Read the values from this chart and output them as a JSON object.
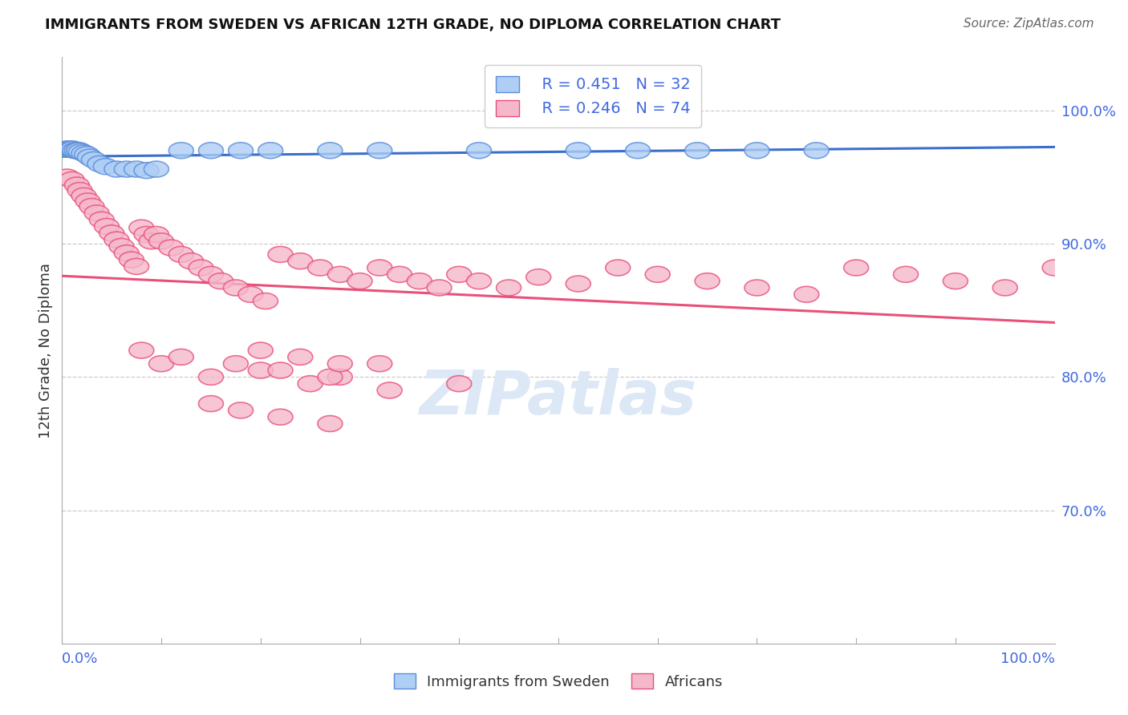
{
  "title": "IMMIGRANTS FROM SWEDEN VS AFRICAN 12TH GRADE, NO DIPLOMA CORRELATION CHART",
  "source": "Source: ZipAtlas.com",
  "ylabel": "12th Grade, No Diploma",
  "legend_r1": "R = 0.451",
  "legend_n1": "N = 32",
  "legend_r2": "R = 0.246",
  "legend_n2": "N = 74",
  "sweden_color": "#aecef5",
  "african_color": "#f5b8cb",
  "sweden_edge_color": "#5b8dd9",
  "african_edge_color": "#e8507a",
  "sweden_line_color": "#3a6fcc",
  "african_line_color": "#e8507a",
  "background_color": "#ffffff",
  "grid_color": "#cccccc",
  "title_color": "#111111",
  "source_color": "#666666",
  "axis_label_color": "#4169e1",
  "watermark_color": "#dce8f5",
  "xlim": [
    0.0,
    1.0
  ],
  "ylim": [
    0.6,
    1.04
  ],
  "right_ytick_labels": [
    "100.0%",
    "90.0%",
    "80.0%",
    "70.0%"
  ],
  "right_ytick_values": [
    1.0,
    0.9,
    0.8,
    0.7
  ],
  "sweden_scatter_x": [
    0.004,
    0.006,
    0.008,
    0.01,
    0.011,
    0.013,
    0.015,
    0.017,
    0.019,
    0.022,
    0.025,
    0.028,
    0.032,
    0.038,
    0.044,
    0.055,
    0.065,
    0.075,
    0.085,
    0.095,
    0.12,
    0.15,
    0.18,
    0.21,
    0.27,
    0.32,
    0.42,
    0.52,
    0.58,
    0.64,
    0.7,
    0.76
  ],
  "sweden_scatter_y": [
    0.971,
    0.971,
    0.971,
    0.971,
    0.971,
    0.97,
    0.97,
    0.97,
    0.969,
    0.968,
    0.967,
    0.965,
    0.963,
    0.96,
    0.958,
    0.956,
    0.956,
    0.956,
    0.955,
    0.956,
    0.97,
    0.97,
    0.97,
    0.97,
    0.97,
    0.97,
    0.97,
    0.97,
    0.97,
    0.97,
    0.97,
    0.97
  ],
  "african_scatter_x": [
    0.005,
    0.01,
    0.015,
    0.018,
    0.022,
    0.026,
    0.03,
    0.035,
    0.04,
    0.045,
    0.05,
    0.055,
    0.06,
    0.065,
    0.07,
    0.075,
    0.08,
    0.085,
    0.09,
    0.095,
    0.1,
    0.11,
    0.12,
    0.13,
    0.14,
    0.15,
    0.16,
    0.175,
    0.19,
    0.205,
    0.22,
    0.24,
    0.26,
    0.28,
    0.3,
    0.32,
    0.34,
    0.36,
    0.38,
    0.4,
    0.42,
    0.45,
    0.48,
    0.52,
    0.56,
    0.6,
    0.65,
    0.7,
    0.75,
    0.8,
    0.85,
    0.9,
    0.95,
    1.0,
    0.1,
    0.15,
    0.2,
    0.25,
    0.28,
    0.33,
    0.08,
    0.12,
    0.175,
    0.22,
    0.27,
    0.32,
    0.4,
    0.2,
    0.24,
    0.28,
    0.15,
    0.18,
    0.22,
    0.27
  ],
  "african_scatter_y": [
    0.95,
    0.948,
    0.944,
    0.94,
    0.936,
    0.932,
    0.928,
    0.923,
    0.918,
    0.913,
    0.908,
    0.903,
    0.898,
    0.893,
    0.888,
    0.883,
    0.912,
    0.907,
    0.902,
    0.907,
    0.902,
    0.897,
    0.892,
    0.887,
    0.882,
    0.877,
    0.872,
    0.867,
    0.862,
    0.857,
    0.892,
    0.887,
    0.882,
    0.877,
    0.872,
    0.882,
    0.877,
    0.872,
    0.867,
    0.877,
    0.872,
    0.867,
    0.875,
    0.87,
    0.882,
    0.877,
    0.872,
    0.867,
    0.862,
    0.882,
    0.877,
    0.872,
    0.867,
    0.882,
    0.81,
    0.8,
    0.805,
    0.795,
    0.8,
    0.79,
    0.82,
    0.815,
    0.81,
    0.805,
    0.8,
    0.81,
    0.795,
    0.82,
    0.815,
    0.81,
    0.78,
    0.775,
    0.77,
    0.765
  ]
}
